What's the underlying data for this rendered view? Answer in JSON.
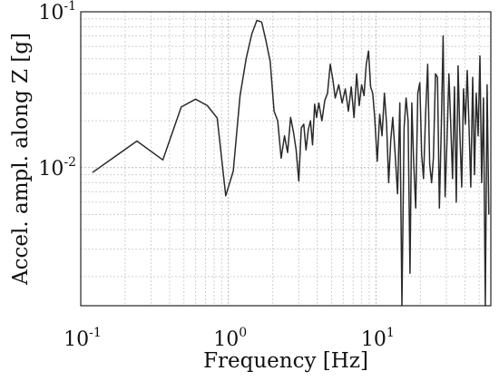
{
  "chart_data": {
    "type": "line",
    "title": "",
    "xlabel": "Frequency [Hz]",
    "ylabel": "Accel. ampl. along Z [g]",
    "xscale": "log",
    "yscale": "log",
    "xlim": [
      0.1,
      60
    ],
    "ylim": [
      0.0013,
      0.1
    ],
    "grid": "on",
    "x_ticks": [
      {
        "value": 0.1,
        "base": "10",
        "exp": "-1"
      },
      {
        "value": 1,
        "base": "10",
        "exp": "0"
      },
      {
        "value": 10,
        "base": "10",
        "exp": "1"
      }
    ],
    "y_ticks": [
      {
        "value": 0.01,
        "base": "10",
        "exp": "-2"
      },
      {
        "value": 0.1,
        "base": "10",
        "exp": "-1"
      }
    ],
    "series": [
      {
        "color": "#2a2a2a",
        "x": [
          0.12,
          0.24,
          0.36,
          0.48,
          0.6,
          0.72,
          0.84,
          0.96,
          1.08,
          1.2,
          1.32,
          1.44,
          1.56,
          1.68,
          1.8,
          1.92,
          2.04,
          2.16,
          2.28,
          2.4,
          2.52,
          2.64,
          2.76,
          2.88,
          3.0,
          3.12,
          3.24,
          3.36,
          3.48,
          3.6,
          3.72,
          3.84,
          3.96,
          4.1,
          4.3,
          4.5,
          4.7,
          4.9,
          5.1,
          5.3,
          5.6,
          5.9,
          6.2,
          6.5,
          6.8,
          7.1,
          7.4,
          7.7,
          8.0,
          8.3,
          8.6,
          8.9,
          9.2,
          9.5,
          9.8,
          10.2,
          10.6,
          11.0,
          11.4,
          11.8,
          12.2,
          12.6,
          13.0,
          13.5,
          14.0,
          14.5,
          15.0,
          15.5,
          16.0,
          16.5,
          17.0,
          17.5,
          18.0,
          18.6,
          19.2,
          19.8,
          20.4,
          21.0,
          21.7,
          22.4,
          23.1,
          23.8,
          24.5,
          25.3,
          26.1,
          26.9,
          27.7,
          28.5,
          29.4,
          30.3,
          31.2,
          32.1,
          33.0,
          34.0,
          35.0,
          36.0,
          37.0,
          38.1,
          39.2,
          40.3,
          41.5,
          42.7,
          43.9,
          45.2,
          46.5,
          47.8,
          49.2,
          50.6,
          52.0,
          53.5,
          55.0,
          56.6,
          58.2
        ],
        "values": [
          0.0093,
          0.0148,
          0.0112,
          0.0245,
          0.0275,
          0.025,
          0.0208,
          0.0066,
          0.0095,
          0.029,
          0.05,
          0.072,
          0.088,
          0.086,
          0.065,
          0.048,
          0.023,
          0.02,
          0.0115,
          0.016,
          0.0125,
          0.021,
          0.017,
          0.013,
          0.0082,
          0.018,
          0.019,
          0.013,
          0.0175,
          0.02,
          0.014,
          0.0255,
          0.021,
          0.026,
          0.02,
          0.027,
          0.03,
          0.046,
          0.037,
          0.028,
          0.034,
          0.026,
          0.032,
          0.023,
          0.033,
          0.021,
          0.04,
          0.025,
          0.034,
          0.029,
          0.046,
          0.056,
          0.033,
          0.03,
          0.021,
          0.011,
          0.022,
          0.016,
          0.03,
          0.019,
          0.008,
          0.015,
          0.021,
          0.012,
          0.0068,
          0.026,
          0.0013,
          0.018,
          0.028,
          0.02,
          0.0021,
          0.026,
          0.011,
          0.0055,
          0.03,
          0.035,
          0.012,
          0.0085,
          0.022,
          0.046,
          0.0105,
          0.008,
          0.0115,
          0.04,
          0.038,
          0.0055,
          0.018,
          0.07,
          0.0065,
          0.015,
          0.04,
          0.019,
          0.0085,
          0.033,
          0.006,
          0.045,
          0.017,
          0.0075,
          0.032,
          0.019,
          0.042,
          0.018,
          0.0075,
          0.038,
          0.009,
          0.03,
          0.016,
          0.052,
          0.008,
          0.028,
          0.0013,
          0.034,
          0.005
        ]
      }
    ]
  }
}
